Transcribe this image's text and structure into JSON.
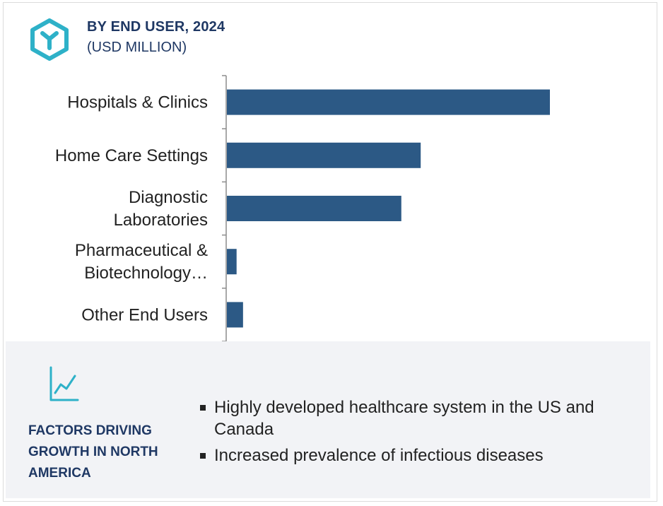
{
  "header": {
    "title": "BY END USER, 2024",
    "subtitle": "(USD MILLION)",
    "logo_icon": "hexagon-y-logo-icon",
    "accent_color": "#2eb1c8"
  },
  "chart_data": {
    "type": "bar",
    "orientation": "horizontal",
    "title": "BY END USER, 2024",
    "subtitle": "(USD MILLION)",
    "categories": [
      [
        "Hospitals & Clinics"
      ],
      [
        "Home Care Settings"
      ],
      [
        "Diagnostic",
        "Laboratories"
      ],
      [
        "Pharmaceutical &",
        "Biotechnology…"
      ],
      [
        "Other End Users"
      ]
    ],
    "values": [
      100,
      60,
      54,
      3,
      5
    ],
    "value_scale_max": 100,
    "value_axis_labels_shown": false,
    "grid": false,
    "bar_color": "#2c5985"
  },
  "factors": {
    "title": "FACTORS DRIVING GROWTH IN NORTH AMERICA",
    "icon": "trend-chart-icon",
    "items": [
      "Highly developed healthcare system in the US and Canada",
      "Increased prevalence of infectious diseases"
    ]
  },
  "colors": {
    "title_navy": "#1f3864",
    "panel_bg": "#f2f3f6",
    "bar": "#2c5985",
    "accent": "#2eb1c8"
  }
}
